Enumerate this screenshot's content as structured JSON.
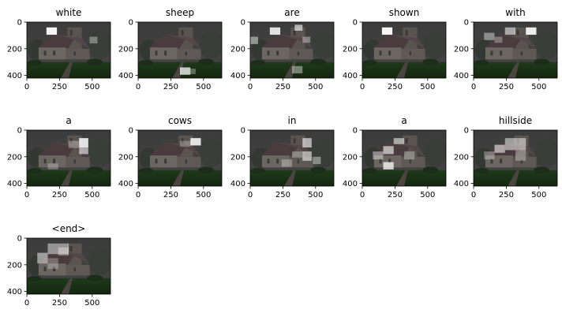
{
  "figure": {
    "panels": [
      {
        "title": "white"
      },
      {
        "title": "sheep"
      },
      {
        "title": "are"
      },
      {
        "title": "shown"
      },
      {
        "title": "with"
      },
      {
        "title": "a"
      },
      {
        "title": "cows"
      },
      {
        "title": "in"
      },
      {
        "title": "a"
      },
      {
        "title": "hillside"
      },
      {
        "title": "<end>"
      }
    ],
    "x_ticks": [
      "0",
      "250",
      "500"
    ],
    "y_ticks": [
      "0",
      "200",
      "400"
    ]
  }
}
